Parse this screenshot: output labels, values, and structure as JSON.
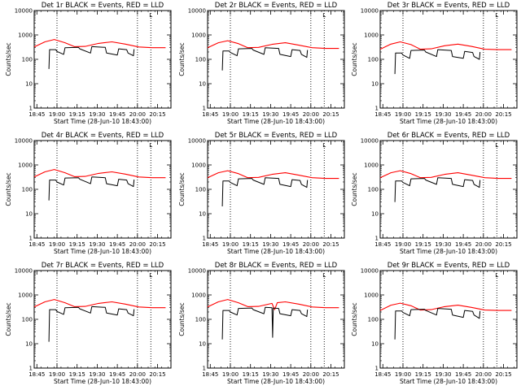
{
  "colors": {
    "events": "#000000",
    "lld": "#ff0000",
    "background": "#ffffff",
    "axes": "#000000"
  },
  "shared": {
    "xlabel": "Start Time (28-Jun-10 18:43:00)",
    "ylabel": "Counts/sec",
    "x_ticks": [
      "18:45",
      "19:00",
      "19:15",
      "19:30",
      "19:45",
      "20:00",
      "20:15"
    ],
    "y_ticks": [
      "1",
      "10",
      "100",
      "1000",
      "10000"
    ],
    "corner_mark": "L"
  },
  "chart_data": [
    {
      "type": "line",
      "title": "Det 1r BLACK = Events, RED = LLD",
      "xlabel": "Start Time (28-Jun-10 18:43:00)",
      "ylabel": "Counts/sec",
      "yscale": "log",
      "ylim": [
        1,
        10000
      ],
      "xlim": [
        "18:43",
        "20:25"
      ],
      "x_unit": "minutes since 18:43",
      "vlines": [
        "19:00",
        "20:00",
        "20:10"
      ],
      "series": [
        {
          "name": "LLD",
          "color": "#ff0000",
          "x": [
            0,
            8,
            15,
            23,
            30,
            38,
            48,
            58,
            68,
            78,
            88,
            98
          ],
          "y": [
            320,
            520,
            650,
            480,
            330,
            340,
            450,
            520,
            420,
            320,
            300,
            300
          ]
        },
        {
          "name": "Events",
          "color": "#000000",
          "x": [
            11,
            11.5,
            12,
            16,
            17,
            22,
            23,
            33,
            34,
            42,
            43,
            53,
            54,
            62,
            63,
            69,
            70,
            74,
            74.5
          ],
          "y": [
            40,
            250,
            250,
            250,
            210,
            160,
            300,
            310,
            270,
            180,
            330,
            310,
            180,
            150,
            270,
            250,
            180,
            140,
            260
          ]
        }
      ]
    },
    {
      "type": "line",
      "title": "Det 2r BLACK = Events, RED = LLD",
      "xlabel": "Start Time (28-Jun-10 18:43:00)",
      "ylabel": "Counts/sec",
      "yscale": "log",
      "ylim": [
        1,
        10000
      ],
      "xlim": [
        "18:43",
        "20:25"
      ],
      "x_unit": "minutes since 18:43",
      "vlines": [
        "19:00",
        "20:00",
        "20:10"
      ],
      "series": [
        {
          "name": "LLD",
          "color": "#ff0000",
          "x": [
            0,
            8,
            15,
            23,
            30,
            38,
            48,
            58,
            68,
            78,
            88,
            98
          ],
          "y": [
            300,
            480,
            580,
            440,
            300,
            310,
            410,
            480,
            380,
            300,
            280,
            280
          ]
        },
        {
          "name": "Events",
          "color": "#000000",
          "x": [
            11,
            11.5,
            12,
            16,
            17,
            22,
            23,
            33,
            34,
            42,
            43,
            53,
            54,
            62,
            63,
            69,
            70,
            74,
            74.5
          ],
          "y": [
            35,
            220,
            220,
            220,
            190,
            140,
            270,
            280,
            240,
            160,
            300,
            280,
            160,
            130,
            250,
            230,
            160,
            120,
            240
          ]
        }
      ]
    },
    {
      "type": "line",
      "title": "Det 3r BLACK = Events, RED = LLD",
      "xlabel": "Start Time (28-Jun-10 18:43:00)",
      "ylabel": "Counts/sec",
      "yscale": "log",
      "ylim": [
        1,
        10000
      ],
      "xlim": [
        "18:43",
        "20:25"
      ],
      "x_unit": "minutes since 18:43",
      "vlines": [
        "19:00",
        "20:00",
        "20:10"
      ],
      "series": [
        {
          "name": "LLD",
          "color": "#ff0000",
          "x": [
            0,
            8,
            15,
            23,
            30,
            38,
            48,
            58,
            68,
            78,
            88,
            98
          ],
          "y": [
            260,
            420,
            520,
            400,
            260,
            270,
            360,
            420,
            340,
            260,
            250,
            250
          ]
        },
        {
          "name": "Events",
          "color": "#000000",
          "x": [
            11,
            11.5,
            12,
            16,
            17,
            22,
            23,
            33,
            34,
            42,
            43,
            53,
            54,
            62,
            63,
            69,
            70,
            74,
            74.5
          ],
          "y": [
            25,
            180,
            180,
            180,
            150,
            110,
            230,
            240,
            200,
            130,
            250,
            230,
            130,
            110,
            210,
            190,
            130,
            100,
            200
          ]
        }
      ]
    },
    {
      "type": "line",
      "title": "Det 4r BLACK = Events, RED = LLD",
      "xlabel": "Start Time (28-Jun-10 18:43:00)",
      "ylabel": "Counts/sec",
      "yscale": "log",
      "ylim": [
        1,
        10000
      ],
      "xlim": [
        "18:43",
        "20:25"
      ],
      "x_unit": "minutes since 18:43",
      "vlines": [
        "19:00",
        "20:00",
        "20:10"
      ],
      "series": [
        {
          "name": "LLD",
          "color": "#ff0000",
          "x": [
            0,
            8,
            15,
            23,
            30,
            38,
            48,
            58,
            68,
            78,
            88,
            98
          ],
          "y": [
            320,
            520,
            650,
            480,
            330,
            340,
            450,
            520,
            420,
            320,
            300,
            300
          ]
        },
        {
          "name": "Events",
          "color": "#000000",
          "x": [
            11,
            11.5,
            12,
            16,
            17,
            22,
            23,
            33,
            34,
            42,
            43,
            53,
            54,
            62,
            63,
            69,
            70,
            74,
            74.5
          ],
          "y": [
            35,
            240,
            240,
            240,
            200,
            150,
            290,
            300,
            260,
            170,
            320,
            300,
            170,
            140,
            260,
            240,
            170,
            130,
            250
          ]
        }
      ]
    },
    {
      "type": "line",
      "title": "Det 5r BLACK = Events, RED = LLD",
      "xlabel": "Start Time (28-Jun-10 18:43:00)",
      "ylabel": "Counts/sec",
      "yscale": "log",
      "ylim": [
        1,
        10000
      ],
      "xlim": [
        "18:43",
        "20:25"
      ],
      "x_unit": "minutes since 18:43",
      "vlines": [
        "19:00",
        "20:00",
        "20:10"
      ],
      "series": [
        {
          "name": "LLD",
          "color": "#ff0000",
          "x": [
            0,
            8,
            15,
            23,
            30,
            38,
            48,
            58,
            68,
            78,
            88,
            98
          ],
          "y": [
            300,
            480,
            580,
            440,
            300,
            310,
            410,
            480,
            380,
            300,
            280,
            280
          ]
        },
        {
          "name": "Events",
          "color": "#000000",
          "x": [
            11,
            11.5,
            12,
            16,
            17,
            22,
            23,
            33,
            34,
            42,
            43,
            53,
            54,
            62,
            63,
            69,
            70,
            74,
            74.5
          ],
          "y": [
            20,
            220,
            220,
            220,
            190,
            140,
            270,
            280,
            240,
            160,
            300,
            280,
            160,
            130,
            250,
            230,
            160,
            120,
            240
          ]
        }
      ]
    },
    {
      "type": "line",
      "title": "Det 6r BLACK = Events, RED = LLD",
      "xlabel": "Start Time (28-Jun-10 18:43:00)",
      "ylabel": "Counts/sec",
      "yscale": "log",
      "ylim": [
        1,
        10000
      ],
      "xlim": [
        "18:43",
        "20:25"
      ],
      "x_unit": "minutes since 18:43",
      "vlines": [
        "19:00",
        "20:00",
        "20:10"
      ],
      "series": [
        {
          "name": "LLD",
          "color": "#ff0000",
          "x": [
            0,
            8,
            15,
            23,
            30,
            38,
            48,
            58,
            68,
            78,
            88,
            98
          ],
          "y": [
            300,
            480,
            580,
            440,
            300,
            310,
            410,
            480,
            380,
            300,
            280,
            280
          ]
        },
        {
          "name": "Events",
          "color": "#000000",
          "x": [
            11,
            11.5,
            12,
            16,
            17,
            22,
            23,
            33,
            34,
            42,
            43,
            53,
            54,
            62,
            63,
            69,
            70,
            74,
            74.5
          ],
          "y": [
            30,
            220,
            220,
            220,
            190,
            140,
            270,
            280,
            240,
            160,
            300,
            280,
            160,
            130,
            250,
            230,
            160,
            120,
            240
          ]
        }
      ]
    },
    {
      "type": "line",
      "title": "Det 7r BLACK = Events, RED = LLD",
      "xlabel": "Start Time (28-Jun-10 18:43:00)",
      "ylabel": "Counts/sec",
      "yscale": "log",
      "ylim": [
        1,
        10000
      ],
      "xlim": [
        "18:43",
        "20:25"
      ],
      "x_unit": "minutes since 18:43",
      "vlines": [
        "19:00",
        "20:00",
        "20:10"
      ],
      "series": [
        {
          "name": "LLD",
          "color": "#ff0000",
          "x": [
            0,
            8,
            15,
            23,
            30,
            38,
            48,
            58,
            68,
            78,
            88,
            98
          ],
          "y": [
            320,
            520,
            650,
            480,
            330,
            340,
            450,
            520,
            420,
            320,
            300,
            300
          ]
        },
        {
          "name": "Events",
          "color": "#000000",
          "x": [
            11,
            11.5,
            12,
            16,
            17,
            22,
            23,
            33,
            34,
            42,
            43,
            53,
            54,
            62,
            63,
            69,
            70,
            74,
            74.5
          ],
          "y": [
            12,
            250,
            250,
            250,
            210,
            160,
            300,
            310,
            270,
            180,
            330,
            310,
            180,
            150,
            270,
            250,
            180,
            140,
            260
          ]
        }
      ]
    },
    {
      "type": "line",
      "title": "Det 8r BLACK = Events, RED = LLD",
      "xlabel": "Start Time (28-Jun-10 18:43:00)",
      "ylabel": "Counts/sec",
      "yscale": "log",
      "ylim": [
        1,
        10000
      ],
      "xlim": [
        "18:43",
        "20:25"
      ],
      "x_unit": "minutes since 18:43",
      "vlines": [
        "19:00",
        "20:00",
        "20:10"
      ],
      "series": [
        {
          "name": "LLD",
          "color": "#ff0000",
          "x": [
            0,
            8,
            15,
            23,
            30,
            38,
            48,
            50,
            52,
            58,
            68,
            78,
            88,
            98
          ],
          "y": [
            320,
            520,
            650,
            480,
            330,
            340,
            450,
            250,
            480,
            520,
            420,
            320,
            300,
            300
          ]
        },
        {
          "name": "Events",
          "color": "#000000",
          "x": [
            11,
            11.5,
            12,
            16,
            17,
            22,
            23,
            33,
            34,
            42,
            43,
            48,
            48.5,
            49,
            53,
            54,
            62,
            63,
            69,
            70,
            74,
            74.5
          ],
          "y": [
            15,
            230,
            230,
            230,
            200,
            150,
            280,
            290,
            250,
            170,
            310,
            300,
            18,
            290,
            280,
            170,
            140,
            250,
            230,
            170,
            130,
            250
          ]
        }
      ]
    },
    {
      "type": "line",
      "title": "Det 9r BLACK = Events, RED = LLD",
      "xlabel": "Start Time (28-Jun-10 18:43:00)",
      "ylabel": "Counts/sec",
      "yscale": "log",
      "ylim": [
        1,
        10000
      ],
      "xlim": [
        "18:43",
        "20:25"
      ],
      "x_unit": "minutes since 18:43",
      "vlines": [
        "19:00",
        "20:00",
        "20:10"
      ],
      "series": [
        {
          "name": "LLD",
          "color": "#ff0000",
          "x": [
            0,
            8,
            15,
            23,
            30,
            38,
            48,
            58,
            68,
            78,
            88,
            98
          ],
          "y": [
            230,
            380,
            460,
            360,
            240,
            250,
            330,
            380,
            310,
            240,
            230,
            230
          ]
        },
        {
          "name": "Events",
          "color": "#000000",
          "x": [
            11,
            11.5,
            12,
            16,
            17,
            22,
            23,
            33,
            34,
            42,
            43,
            53,
            54,
            62,
            63,
            69,
            70,
            74,
            74.5
          ],
          "y": [
            15,
            220,
            220,
            220,
            190,
            140,
            250,
            260,
            230,
            150,
            280,
            260,
            150,
            120,
            230,
            210,
            150,
            110,
            220
          ]
        }
      ]
    }
  ]
}
